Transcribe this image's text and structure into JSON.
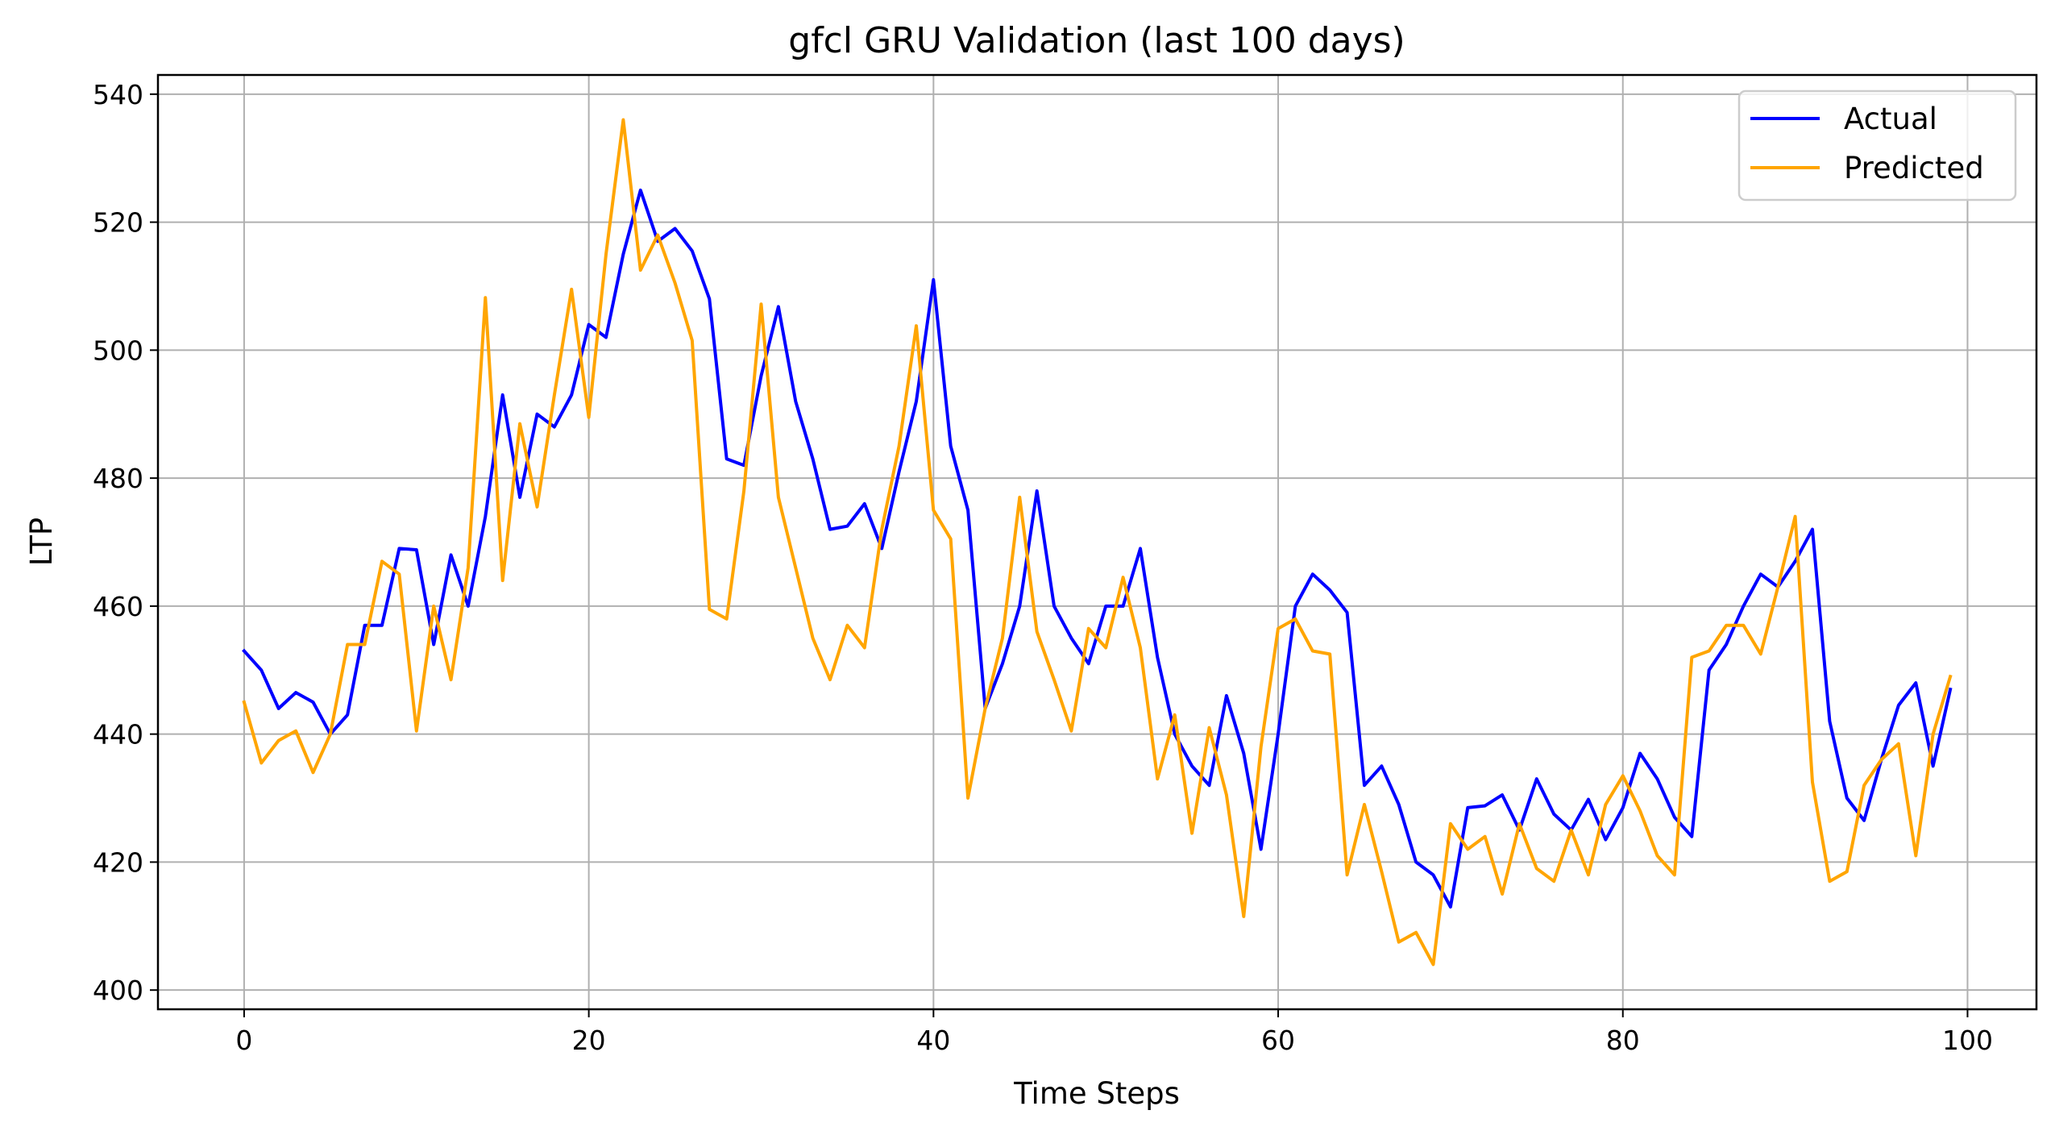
{
  "chart_data": {
    "type": "line",
    "title": "gfcl GRU Validation (last 100 days)",
    "xlabel": "Time Steps",
    "ylabel": "LTP",
    "xlim": [
      -5,
      104
    ],
    "ylim": [
      397,
      543
    ],
    "x_ticks": [
      0,
      20,
      40,
      60,
      80,
      100
    ],
    "y_ticks": [
      400,
      420,
      440,
      460,
      480,
      500,
      520,
      540
    ],
    "grid": true,
    "legend_position": "top-right",
    "x": [
      0,
      1,
      2,
      3,
      4,
      5,
      6,
      7,
      8,
      9,
      10,
      11,
      12,
      13,
      14,
      15,
      16,
      17,
      18,
      19,
      20,
      21,
      22,
      23,
      24,
      25,
      26,
      27,
      28,
      29,
      30,
      31,
      32,
      33,
      34,
      35,
      36,
      37,
      38,
      39,
      40,
      41,
      42,
      43,
      44,
      45,
      46,
      47,
      48,
      49,
      50,
      51,
      52,
      53,
      54,
      55,
      56,
      57,
      58,
      59,
      60,
      61,
      62,
      63,
      64,
      65,
      66,
      67,
      68,
      69,
      70,
      71,
      72,
      73,
      74,
      75,
      76,
      77,
      78,
      79,
      80,
      81,
      82,
      83,
      84,
      85,
      86,
      87,
      88,
      89,
      90,
      91,
      92,
      93,
      94,
      95,
      96,
      97,
      98,
      99
    ],
    "series": [
      {
        "name": "Actual",
        "color": "#0000ff",
        "values": [
          453,
          450,
          444,
          446.5,
          445,
          440,
          443,
          457,
          457,
          469,
          468.8,
          454,
          468,
          460,
          474,
          493,
          477,
          490,
          488,
          493,
          504,
          502,
          515,
          525,
          517,
          519,
          515.5,
          508,
          483,
          482,
          496,
          506.8,
          492,
          483,
          472,
          472.5,
          476,
          469,
          481,
          492,
          511,
          485,
          475,
          444,
          451,
          460,
          478,
          460,
          455,
          451,
          460,
          460,
          469,
          452,
          440,
          435,
          432,
          446,
          437,
          422,
          440,
          460,
          465,
          462.5,
          459,
          432,
          435,
          429,
          420,
          418,
          413,
          428.5,
          428.8,
          430.5,
          425,
          433,
          427.5,
          425,
          429.8,
          423.5,
          428.5,
          437,
          433,
          427,
          424,
          450,
          454,
          460,
          465,
          463,
          467,
          472,
          442,
          430,
          426.5,
          436,
          444.5,
          448,
          435,
          447
        ]
      },
      {
        "name": "Predicted",
        "color": "#ffa500",
        "values": [
          445,
          435.5,
          439,
          440.5,
          434,
          440,
          454,
          454,
          467,
          465,
          440.5,
          460,
          448.5,
          466,
          508.2,
          464,
          488.5,
          475.5,
          493,
          509.5,
          489.5,
          515,
          536,
          512.5,
          518,
          510.5,
          501.5,
          459.5,
          458,
          478,
          507.2,
          477,
          466,
          455,
          448.5,
          457,
          453.5,
          472,
          485,
          503.8,
          475,
          470.5,
          430,
          444,
          455,
          477,
          456,
          448.5,
          440.5,
          456.5,
          453.5,
          464.5,
          453.5,
          433,
          443,
          424.5,
          441,
          430.5,
          411.5,
          438,
          456.5,
          458,
          453,
          452.5,
          418,
          429,
          418.5,
          407.5,
          409,
          404,
          426,
          422,
          424,
          415,
          426,
          419,
          417,
          425,
          418,
          429,
          433.5,
          428,
          421,
          418,
          452,
          453,
          457,
          457,
          452.5,
          463,
          474,
          432.5,
          417,
          418.5,
          432,
          436,
          438.5,
          421,
          440,
          449
        ]
      }
    ]
  }
}
